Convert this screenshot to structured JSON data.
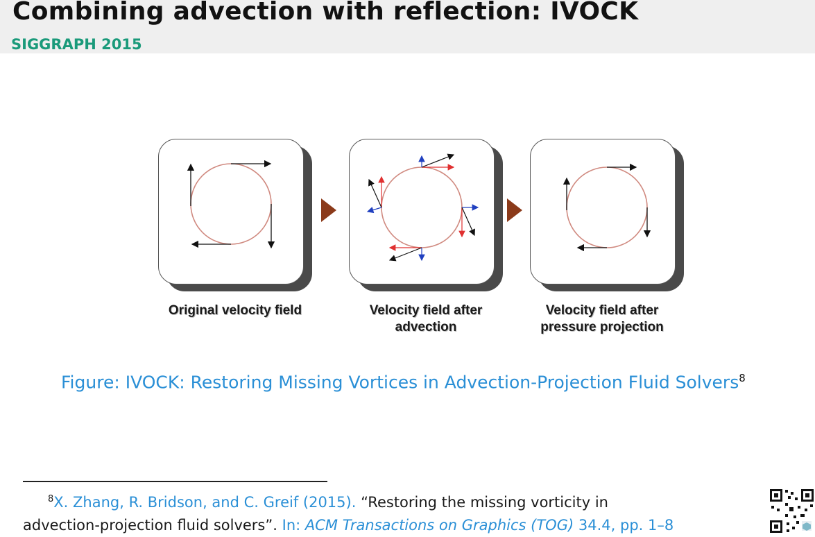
{
  "header": {
    "title": "Combining advection with reflection: IVOCK",
    "subtitle": "SIGGRAPH 2015"
  },
  "figure": {
    "panels": [
      {
        "caption": "Original velocity field"
      },
      {
        "caption_line1": "Velocity field after",
        "caption_line2": "advection"
      },
      {
        "caption_line1": "Velocity field after",
        "caption_line2": "pressure projection"
      }
    ],
    "caption_prefix": "Figure:",
    "caption_text": "IVOCK: Restoring Missing Vortices in Advection-Projection Fluid Solvers",
    "caption_ref": "8"
  },
  "footnote": {
    "number": "8",
    "authors": "X. Zhang, R. Bridson, and C. Greif (2015).",
    "title_part1": "“Restoring the missing vorticity in",
    "title_part2": "advection-projection fluid solvers”.",
    "in_label": "In:",
    "journal": "ACM Transactions on Graphics (TOG)",
    "details": "34.4, pp. 1–8"
  },
  "colors": {
    "title_text": "#111111",
    "subtitle": "#1a9a7a",
    "caption_blue": "#2a8fd6",
    "arrow_triangle": "#8b3a1a",
    "circle": "#d08a80",
    "red_vectors": "#e03030",
    "blue_vectors": "#2040c0"
  },
  "icons": {
    "qr": "qr-code-icon"
  }
}
